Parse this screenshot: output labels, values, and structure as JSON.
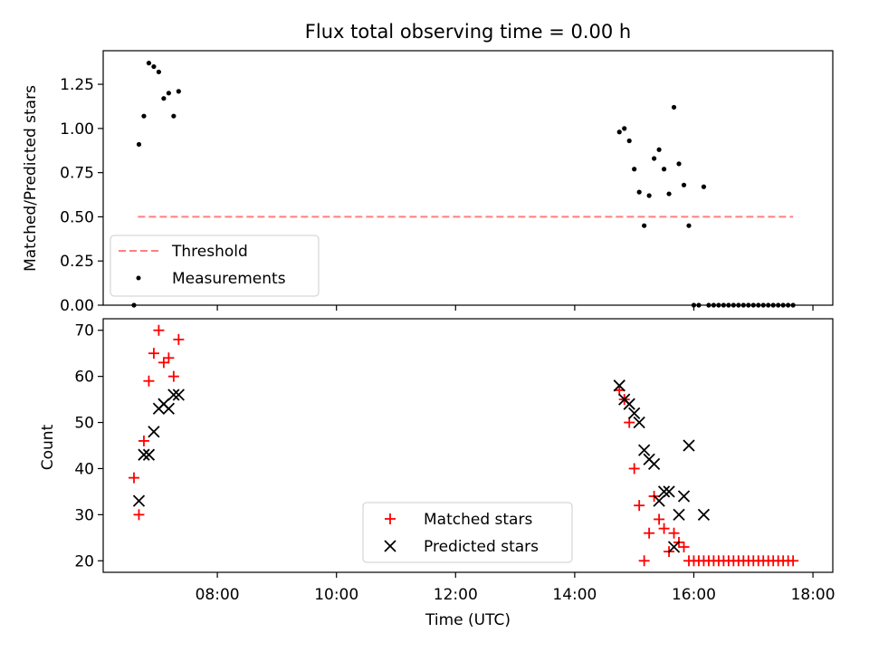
{
  "chart_data": [
    {
      "type": "scatter",
      "title": "Flux total observing time = 0.00 h",
      "ylabel": "Matched/Predicted stars",
      "xlabel": "",
      "xlim": [
        "06:05",
        "18:20"
      ],
      "ylim": [
        0,
        1.44
      ],
      "y_ticks": [
        "0.00",
        "0.25",
        "0.50",
        "0.75",
        "1.00",
        "1.25"
      ],
      "x_ticks": [
        "08:00",
        "10:00",
        "12:00",
        "14:00",
        "16:00",
        "18:00"
      ],
      "threshold": {
        "name": "Threshold",
        "value": 0.5,
        "x": [
          "06:40",
          "17:40"
        ],
        "color": "#ff7f7f"
      },
      "legend": {
        "position": "lower-left",
        "entries": [
          "Threshold",
          "Measurements"
        ]
      },
      "series": [
        {
          "name": "Measurements",
          "color": "#000000",
          "marker": "dot",
          "points": [
            [
              "06:36",
              0.0
            ],
            [
              "06:41",
              0.91
            ],
            [
              "06:46",
              1.07
            ],
            [
              "06:51",
              1.37
            ],
            [
              "06:56",
              1.35
            ],
            [
              "07:01",
              1.32
            ],
            [
              "07:06",
              1.17
            ],
            [
              "07:11",
              1.2
            ],
            [
              "07:16",
              1.07
            ],
            [
              "07:21",
              1.21
            ],
            [
              "14:45",
              0.98
            ],
            [
              "14:50",
              1.0
            ],
            [
              "14:55",
              0.93
            ],
            [
              "15:00",
              0.77
            ],
            [
              "15:05",
              0.64
            ],
            [
              "15:10",
              0.45
            ],
            [
              "15:15",
              0.62
            ],
            [
              "15:20",
              0.83
            ],
            [
              "15:25",
              0.88
            ],
            [
              "15:30",
              0.77
            ],
            [
              "15:35",
              0.63
            ],
            [
              "15:40",
              1.12
            ],
            [
              "15:45",
              0.8
            ],
            [
              "15:50",
              0.68
            ],
            [
              "15:55",
              0.45
            ],
            [
              "16:00",
              0.0
            ],
            [
              "16:05",
              0.0
            ],
            [
              "16:10",
              0.67
            ],
            [
              "16:15",
              0.0
            ],
            [
              "16:20",
              0.0
            ],
            [
              "16:25",
              0.0
            ],
            [
              "16:30",
              0.0
            ],
            [
              "16:35",
              0.0
            ],
            [
              "16:40",
              0.0
            ],
            [
              "16:45",
              0.0
            ],
            [
              "16:50",
              0.0
            ],
            [
              "16:55",
              0.0
            ],
            [
              "17:00",
              0.0
            ],
            [
              "17:05",
              0.0
            ],
            [
              "17:10",
              0.0
            ],
            [
              "17:15",
              0.0
            ],
            [
              "17:20",
              0.0
            ],
            [
              "17:25",
              0.0
            ],
            [
              "17:30",
              0.0
            ],
            [
              "17:35",
              0.0
            ],
            [
              "17:40",
              0.0
            ]
          ]
        }
      ]
    },
    {
      "type": "scatter",
      "title": "",
      "ylabel": "Count",
      "xlabel": "Time (UTC)",
      "xlim": [
        "06:05",
        "18:20"
      ],
      "ylim": [
        17.5,
        72.5
      ],
      "y_ticks": [
        "20",
        "30",
        "40",
        "50",
        "60",
        "70"
      ],
      "x_ticks": [
        "08:00",
        "10:00",
        "12:00",
        "14:00",
        "16:00",
        "18:00"
      ],
      "legend": {
        "position": "lower-center",
        "entries": [
          "Matched stars",
          "Predicted stars"
        ]
      },
      "series": [
        {
          "name": "Matched stars",
          "color": "#ff0000",
          "marker": "plus",
          "points": [
            [
              "06:36",
              38
            ],
            [
              "06:41",
              30
            ],
            [
              "06:46",
              46
            ],
            [
              "06:51",
              59
            ],
            [
              "06:56",
              65
            ],
            [
              "07:01",
              70
            ],
            [
              "07:06",
              63
            ],
            [
              "07:11",
              64
            ],
            [
              "07:16",
              60
            ],
            [
              "07:21",
              68
            ],
            [
              "14:45",
              57
            ],
            [
              "14:50",
              55
            ],
            [
              "14:55",
              50
            ],
            [
              "15:00",
              40
            ],
            [
              "15:05",
              32
            ],
            [
              "15:10",
              20
            ],
            [
              "15:15",
              26
            ],
            [
              "15:20",
              34
            ],
            [
              "15:25",
              29
            ],
            [
              "15:30",
              27
            ],
            [
              "15:35",
              22
            ],
            [
              "15:40",
              26
            ],
            [
              "15:45",
              24
            ],
            [
              "15:50",
              23
            ],
            [
              "15:55",
              20
            ],
            [
              "16:00",
              20
            ],
            [
              "16:05",
              20
            ],
            [
              "16:10",
              20
            ],
            [
              "16:15",
              20
            ],
            [
              "16:20",
              20
            ],
            [
              "16:25",
              20
            ],
            [
              "16:30",
              20
            ],
            [
              "16:35",
              20
            ],
            [
              "16:40",
              20
            ],
            [
              "16:45",
              20
            ],
            [
              "16:50",
              20
            ],
            [
              "16:55",
              20
            ],
            [
              "17:00",
              20
            ],
            [
              "17:05",
              20
            ],
            [
              "17:10",
              20
            ],
            [
              "17:15",
              20
            ],
            [
              "17:20",
              20
            ],
            [
              "17:25",
              20
            ],
            [
              "17:30",
              20
            ],
            [
              "17:35",
              20
            ],
            [
              "17:40",
              20
            ]
          ]
        },
        {
          "name": "Predicted stars",
          "color": "#000000",
          "marker": "x",
          "points": [
            [
              "06:41",
              33
            ],
            [
              "06:46",
              43
            ],
            [
              "06:51",
              43
            ],
            [
              "06:56",
              48
            ],
            [
              "07:01",
              53
            ],
            [
              "07:06",
              54
            ],
            [
              "07:11",
              53
            ],
            [
              "07:16",
              56
            ],
            [
              "07:21",
              56
            ],
            [
              "14:45",
              58
            ],
            [
              "14:50",
              55
            ],
            [
              "14:55",
              54
            ],
            [
              "15:00",
              52
            ],
            [
              "15:05",
              50
            ],
            [
              "15:10",
              44
            ],
            [
              "15:15",
              42
            ],
            [
              "15:20",
              41
            ],
            [
              "15:25",
              33
            ],
            [
              "15:30",
              35
            ],
            [
              "15:35",
              35
            ],
            [
              "15:40",
              23
            ],
            [
              "15:45",
              30
            ],
            [
              "15:50",
              34
            ],
            [
              "15:55",
              45
            ],
            [
              "16:10",
              30
            ]
          ]
        }
      ]
    }
  ]
}
